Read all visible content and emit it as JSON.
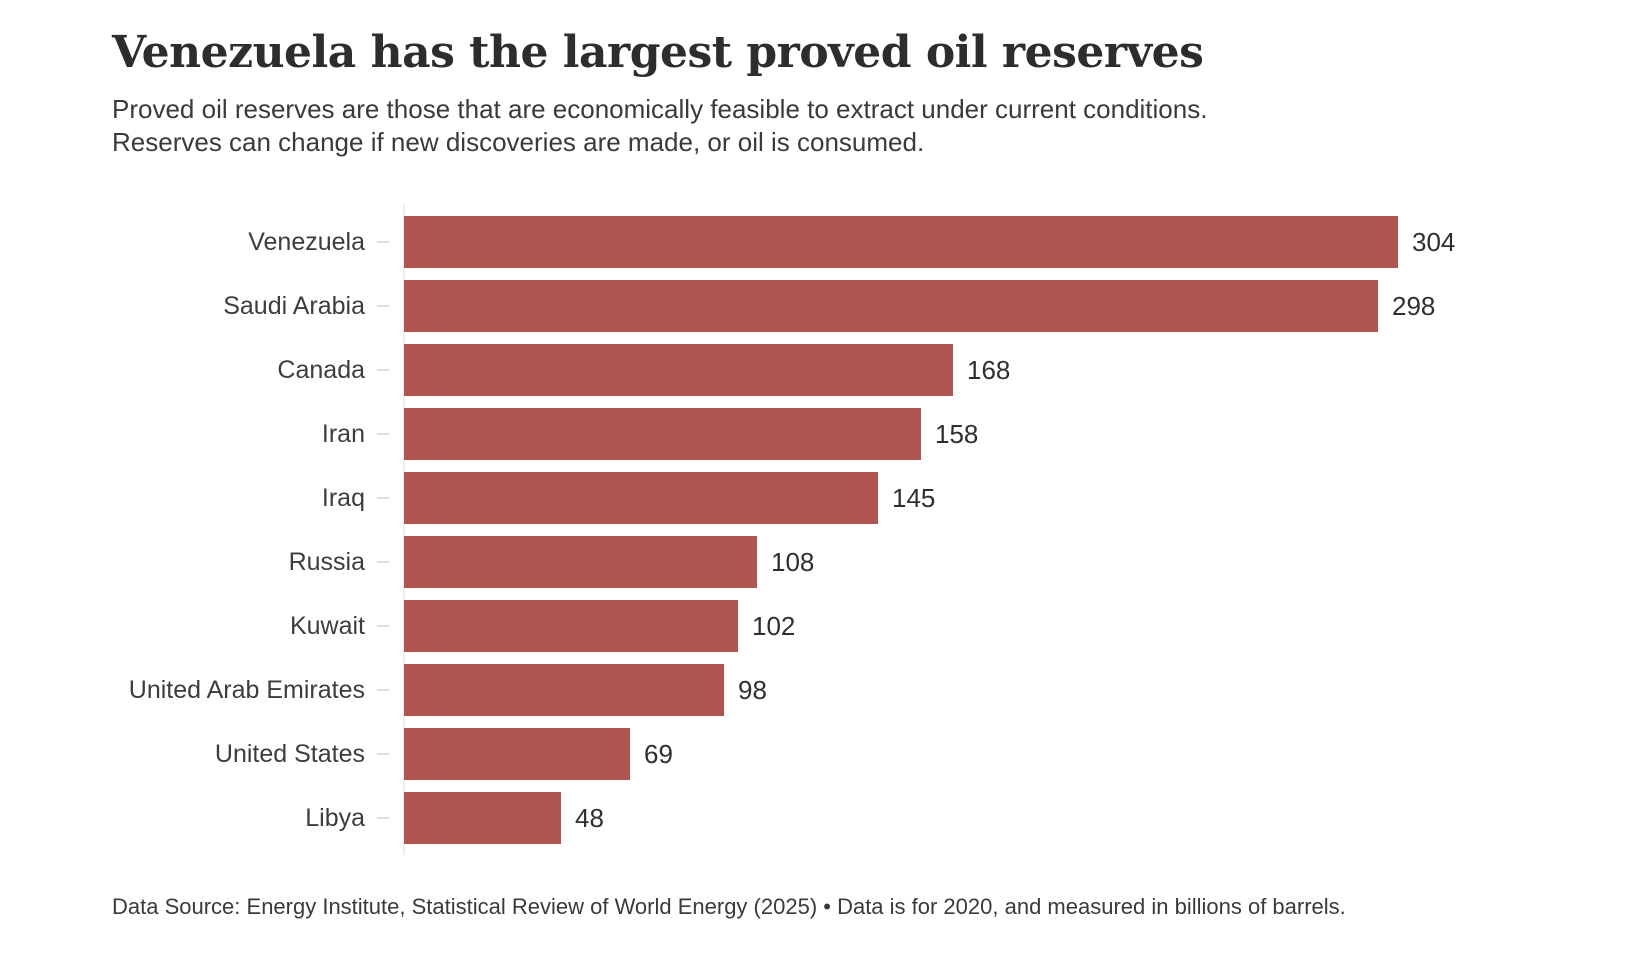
{
  "header": {
    "title": "Venezuela has the largest proved oil reserves",
    "subtitle_line1": "Proved oil reserves are those that are economically feasible to extract under current conditions.",
    "subtitle_line2": "Reserves can change if new discoveries are made, or oil is consumed."
  },
  "chart_data": {
    "type": "bar",
    "orientation": "horizontal",
    "title": "Venezuela has the largest proved oil reserves",
    "categories": [
      "Venezuela",
      "Saudi Arabia",
      "Canada",
      "Iran",
      "Iraq",
      "Russia",
      "Kuwait",
      "United Arab Emirates",
      "United States",
      "Libya"
    ],
    "values": [
      304,
      298,
      168,
      158,
      145,
      108,
      102,
      98,
      69,
      48
    ],
    "xlabel": "",
    "ylabel": "",
    "xlim": [
      0,
      304
    ],
    "grid": false,
    "legend": false,
    "bar_color": "#b0554f",
    "units": "billions of barrels"
  },
  "footer": {
    "text": "Data Source: Energy Institute, Statistical Review of World Energy (2025) • Data is for 2020, and measured in billions of barrels."
  },
  "colors": {
    "bar": "#b0554f",
    "title": "#2d2d2d",
    "text": "#3a3a3a",
    "axis": "#ececec",
    "background": "#ffffff"
  }
}
